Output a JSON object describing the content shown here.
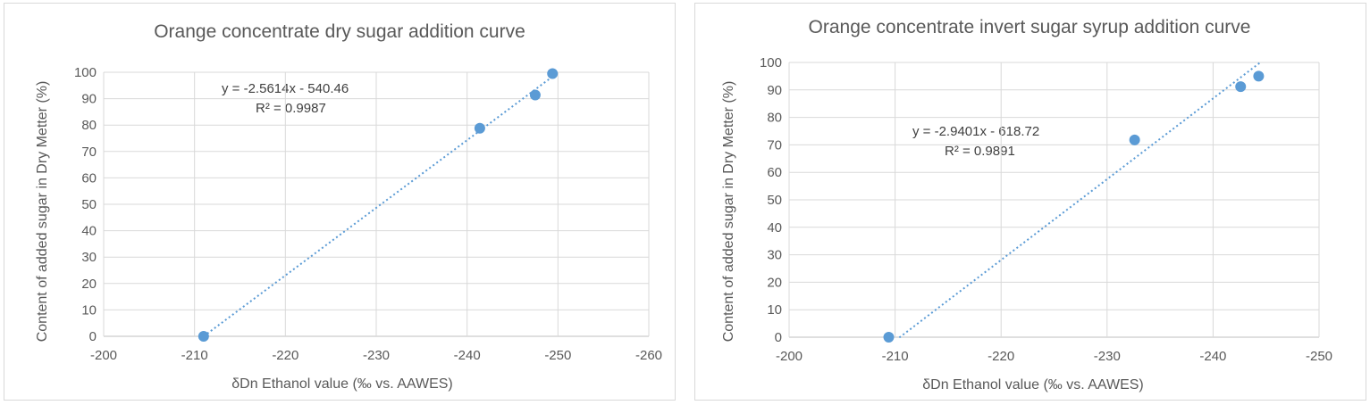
{
  "chart_data": [
    {
      "type": "scatter",
      "title": "Orange concentrate dry sugar addition curve",
      "xlabel": "δDn Ethanol value (‰ vs. AAWES)",
      "ylabel": "Content of added sugar in Dry Metter (%)",
      "xlim": [
        -200,
        -260
      ],
      "ylim": [
        0,
        100
      ],
      "xticks": [
        -200,
        -210,
        -220,
        -230,
        -240,
        -250,
        -260
      ],
      "yticks": [
        0,
        10,
        20,
        30,
        40,
        50,
        60,
        70,
        80,
        90,
        100
      ],
      "grid": true,
      "color": "#5b9bd5",
      "x": [
        -211.0,
        -241.4,
        -247.5,
        -249.4
      ],
      "y": [
        0,
        78.8,
        91.4,
        99.5
      ],
      "trendline": {
        "slope": -2.5614,
        "intercept": -540.46,
        "x_range": [
          -211.0,
          -249.5
        ],
        "equation": "y = -2.5614x - 540.46",
        "r2": "R² = 0.9987"
      }
    },
    {
      "type": "scatter",
      "title": "Orange concentrate invert sugar syrup addition curve",
      "xlabel": "δDn Ethanol value (‰ vs. AAWES)",
      "ylabel": "Content of added sugar in Dry Metter (%)",
      "xlim": [
        -200,
        -250
      ],
      "ylim": [
        0,
        100
      ],
      "xticks": [
        -200,
        -210,
        -220,
        -230,
        -240,
        -250
      ],
      "yticks": [
        0,
        10,
        20,
        30,
        40,
        50,
        60,
        70,
        80,
        90,
        100
      ],
      "grid": true,
      "color": "#5b9bd5",
      "x": [
        -209.4,
        -232.6,
        -242.6,
        -244.3
      ],
      "y": [
        0,
        71.8,
        91.2,
        95.0
      ],
      "trendline": {
        "slope": -2.9401,
        "intercept": -618.72,
        "x_range": [
          -210.4,
          -244.4
        ],
        "equation": "y = -2.9401x - 618.72",
        "r2": "R² = 0.9891"
      }
    }
  ]
}
